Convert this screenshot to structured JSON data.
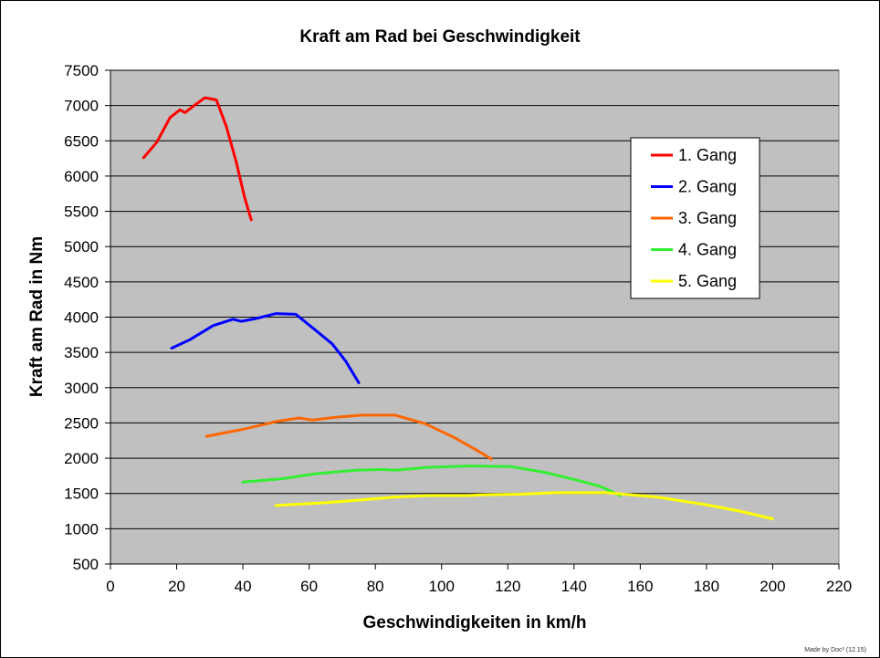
{
  "chart_data": {
    "type": "line",
    "title": "Kraft am Rad bei Geschwindigkeit",
    "xlabel": "Geschwindigkeiten in km/h",
    "ylabel": "Kraft am Rad in Nm",
    "xlim": [
      0,
      220
    ],
    "ylim": [
      500,
      7500
    ],
    "xticks": [
      0,
      20,
      40,
      60,
      80,
      100,
      120,
      140,
      160,
      180,
      200,
      220
    ],
    "yticks": [
      500,
      1000,
      1500,
      2000,
      2500,
      3000,
      3500,
      4000,
      4500,
      5000,
      5500,
      6000,
      6500,
      7000,
      7500
    ],
    "grid": true,
    "plot_background": "#c0c0c0",
    "legend_position": "top-right",
    "series": [
      {
        "name": "1. Gang",
        "color": "#ff0000",
        "points": [
          [
            10,
            6260
          ],
          [
            14,
            6480
          ],
          [
            18,
            6830
          ],
          [
            21,
            6940
          ],
          [
            22.5,
            6900
          ],
          [
            25,
            6990
          ],
          [
            28.5,
            7110
          ],
          [
            32,
            7080
          ],
          [
            35,
            6700
          ],
          [
            38,
            6200
          ],
          [
            40.5,
            5700
          ],
          [
            42.5,
            5380
          ]
        ]
      },
      {
        "name": "2. Gang",
        "color": "#0000ff",
        "points": [
          [
            18.5,
            3560
          ],
          [
            24,
            3680
          ],
          [
            31,
            3880
          ],
          [
            37,
            3970
          ],
          [
            39.5,
            3940
          ],
          [
            44,
            3980
          ],
          [
            50,
            4050
          ],
          [
            56,
            4040
          ],
          [
            61,
            3850
          ],
          [
            67,
            3620
          ],
          [
            71,
            3380
          ],
          [
            75,
            3070
          ]
        ]
      },
      {
        "name": "3. Gang",
        "color": "#ff6600",
        "points": [
          [
            29,
            2310
          ],
          [
            40,
            2410
          ],
          [
            50,
            2520
          ],
          [
            57,
            2570
          ],
          [
            61,
            2540
          ],
          [
            68,
            2580
          ],
          [
            76,
            2610
          ],
          [
            86,
            2610
          ],
          [
            95,
            2490
          ],
          [
            104,
            2290
          ],
          [
            110,
            2130
          ],
          [
            115,
            1990
          ]
        ]
      },
      {
        "name": "4. Gang",
        "color": "#33ee33",
        "points": [
          [
            40,
            1660
          ],
          [
            52,
            1710
          ],
          [
            62,
            1780
          ],
          [
            74,
            1830
          ],
          [
            82,
            1840
          ],
          [
            86,
            1830
          ],
          [
            96,
            1870
          ],
          [
            108,
            1890
          ],
          [
            121,
            1880
          ],
          [
            131,
            1800
          ],
          [
            140,
            1700
          ],
          [
            148,
            1600
          ],
          [
            154,
            1470
          ]
        ]
      },
      {
        "name": "5. Gang",
        "color": "#ffff00",
        "points": [
          [
            50,
            1330
          ],
          [
            65,
            1370
          ],
          [
            76,
            1410
          ],
          [
            86,
            1450
          ],
          [
            96,
            1470
          ],
          [
            108,
            1470
          ],
          [
            112,
            1480
          ],
          [
            124,
            1490
          ],
          [
            134,
            1510
          ],
          [
            150,
            1510
          ],
          [
            165,
            1450
          ],
          [
            180,
            1340
          ],
          [
            190,
            1250
          ],
          [
            200,
            1140
          ]
        ]
      }
    ]
  },
  "credit": "Made by Doc² (12.15)"
}
